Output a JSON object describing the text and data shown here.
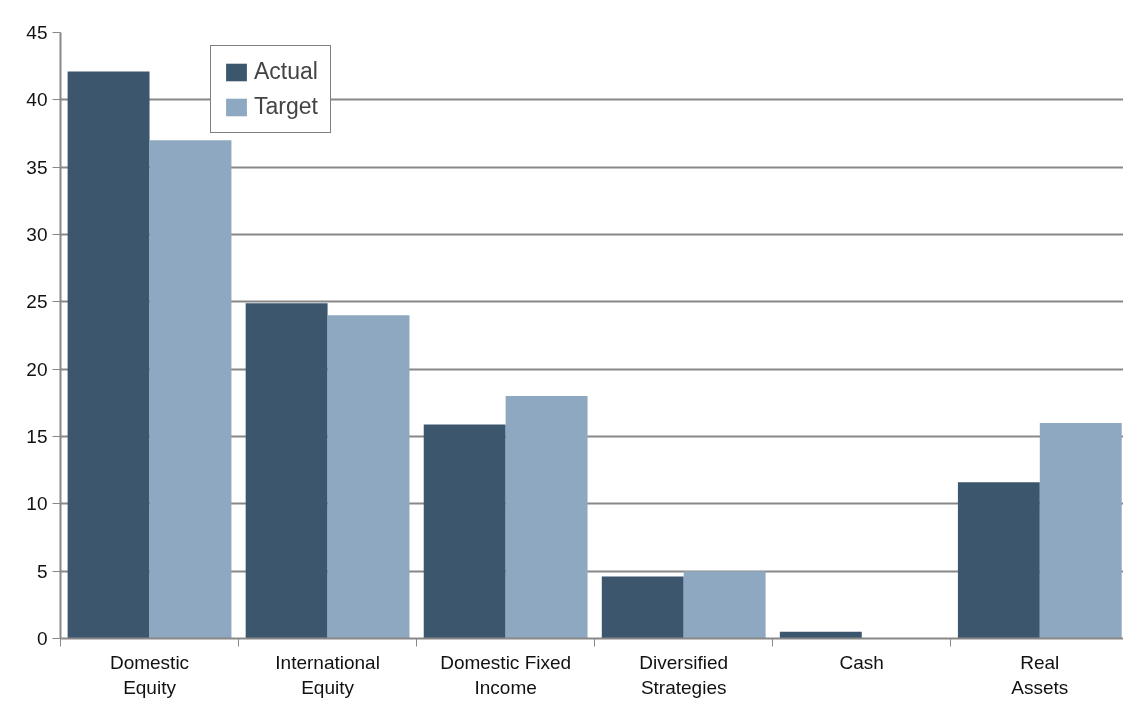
{
  "chart_data": {
    "type": "bar",
    "categories": [
      "Domestic\nEquity",
      "International\nEquity",
      "Domestic Fixed\nIncome",
      "Diversified\nStrategies",
      "Cash",
      "Real\nAssets"
    ],
    "series": [
      {
        "name": "Actual",
        "color": "#3c566e",
        "values": [
          42.1,
          24.9,
          15.9,
          4.6,
          0.5,
          11.6
        ]
      },
      {
        "name": "Target",
        "color": "#8ea8c1",
        "values": [
          37,
          24,
          18,
          5,
          0,
          16
        ]
      }
    ],
    "ylim": [
      0,
      45
    ],
    "yticks": [
      0,
      5,
      10,
      15,
      20,
      25,
      30,
      35,
      40,
      45
    ],
    "grid": "y",
    "legend": "top left"
  }
}
